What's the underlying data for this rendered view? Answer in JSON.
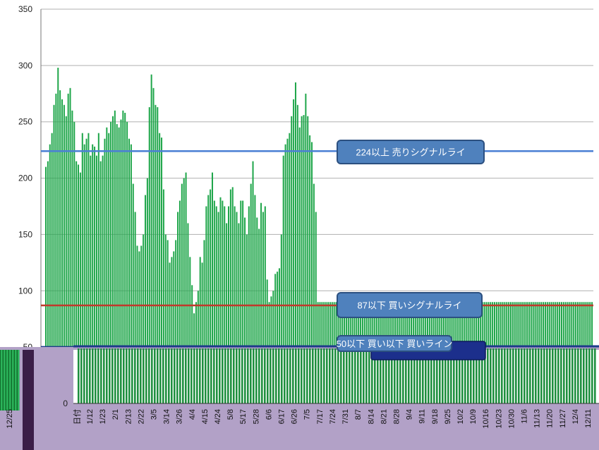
{
  "chart_data": {
    "type": "bar",
    "title": "",
    "xlabel": "",
    "ylabel": "",
    "ylim": [
      0,
      350
    ],
    "y_ticks": [
      "0",
      "50",
      "100",
      "150",
      "200",
      "250",
      "300",
      "350"
    ],
    "x_label_first": "日付",
    "x_labels": [
      "1/12",
      "1/23",
      "2/1",
      "2/13",
      "2/22",
      "3/5",
      "3/14",
      "3/26",
      "4/4",
      "4/15",
      "4/24",
      "5/8",
      "5/17",
      "5/28",
      "6/6",
      "6/17",
      "6/26",
      "7/5",
      "7/17",
      "7/24",
      "7/31",
      "8/7",
      "8/14",
      "8/21",
      "8/28",
      "9/4",
      "9/11",
      "9/18",
      "9/25",
      "10/2",
      "10/9",
      "10/16",
      "10/23",
      "10/30",
      "11/6",
      "11/13",
      "11/20",
      "11/27",
      "12/4",
      "12/11"
    ],
    "secondary_x_label": "12/25",
    "series_color": "#1fa64a",
    "values": [
      210,
      215,
      230,
      240,
      265,
      275,
      298,
      278,
      270,
      265,
      255,
      275,
      280,
      260,
      250,
      215,
      212,
      205,
      240,
      230,
      235,
      240,
      220,
      230,
      228,
      220,
      240,
      215,
      220,
      235,
      245,
      240,
      250,
      255,
      260,
      248,
      245,
      252,
      260,
      258,
      250,
      235,
      230,
      195,
      170,
      140,
      135,
      140,
      150,
      185,
      200,
      263,
      292,
      280,
      265,
      263,
      240,
      236,
      190,
      150,
      145,
      125,
      130,
      135,
      145,
      170,
      180,
      195,
      200,
      205,
      160,
      130,
      105,
      80,
      90,
      100,
      130,
      125,
      145,
      175,
      185,
      190,
      205,
      180,
      175,
      170,
      183,
      180,
      175,
      160,
      175,
      190,
      192,
      175,
      170,
      160,
      180,
      180,
      165,
      150,
      175,
      195,
      215,
      185,
      165,
      155,
      178,
      170,
      175,
      110,
      90,
      95,
      100,
      115,
      117,
      120,
      150,
      220,
      230,
      235,
      240,
      255,
      270,
      285,
      265,
      245,
      255,
      256,
      275,
      255,
      238,
      232,
      195,
      170,
      90,
      90,
      90,
      90,
      90,
      90,
      90,
      90,
      90,
      90,
      90,
      90,
      90,
      90,
      90,
      90,
      90,
      90,
      90,
      90,
      90,
      90,
      90,
      90,
      90,
      90,
      90,
      90,
      90,
      90,
      90,
      90,
      90,
      90,
      90,
      90,
      90,
      90,
      90,
      90,
      90,
      90,
      90,
      90,
      90,
      90,
      90,
      90,
      90,
      90,
      90,
      90,
      90,
      90,
      90,
      90,
      90,
      90,
      90,
      90,
      90,
      90,
      90,
      90,
      90,
      90,
      90,
      90,
      90,
      90,
      90,
      90,
      90,
      90,
      90,
      90,
      90,
      90,
      90,
      90,
      90,
      90,
      90,
      90,
      90,
      90,
      90,
      90,
      90,
      90,
      90,
      90,
      90,
      90,
      90,
      90,
      90,
      90,
      90,
      90,
      90,
      90,
      90,
      90,
      90,
      90,
      90,
      90,
      90,
      90,
      90,
      90,
      90,
      90,
      90,
      90,
      90,
      90,
      90,
      90,
      90,
      90,
      90,
      90,
      90,
      90,
      90,
      90,
      90,
      90,
      90,
      90,
      90,
      90,
      90,
      90
    ],
    "lines": [
      {
        "value": 224,
        "label": "224以上  売りシグナルライ",
        "color": "#4a7fd4"
      },
      {
        "value": 87,
        "label": "87以下  買いシグナルライ",
        "color": "#c0392b"
      },
      {
        "value": 50,
        "label": "50以下  買い以下  買いライン",
        "color": "#1e3a8a"
      }
    ],
    "grid": true
  }
}
